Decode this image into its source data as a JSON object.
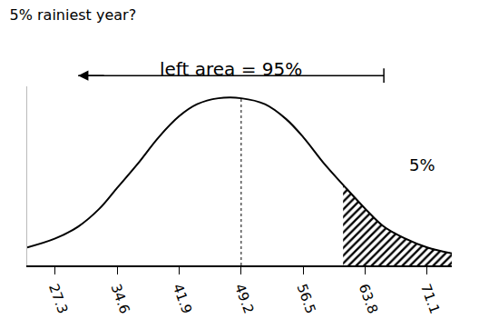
{
  "chart_data": {
    "type": "line",
    "title": "5% rainiest year?",
    "x": [
      24,
      27.3,
      30,
      32.5,
      34.6,
      37,
      39.5,
      41.9,
      44,
      46.5,
      49.2,
      52,
      54.5,
      56.5,
      59,
      61.2,
      63.8,
      66,
      68.5,
      71.1,
      74
    ],
    "values": [
      0.006,
      0.009,
      0.013,
      0.019,
      0.026,
      0.034,
      0.043,
      0.05,
      0.054,
      0.056,
      0.056,
      0.054,
      0.049,
      0.043,
      0.034,
      0.027,
      0.019,
      0.013,
      0.009,
      0.006,
      0.004
    ],
    "shaded_from": 61.2,
    "color": "#000000",
    "xlim": [
      24,
      74
    ],
    "xticks": [
      27.3,
      34.6,
      41.9,
      49.2,
      56.5,
      63.8,
      71.1
    ],
    "ylim": [
      0,
      0.06
    ],
    "yticks": [],
    "tick_labels": "x",
    "grid": false,
    "annotations": [
      "left area = 95%",
      "5%"
    ]
  }
}
